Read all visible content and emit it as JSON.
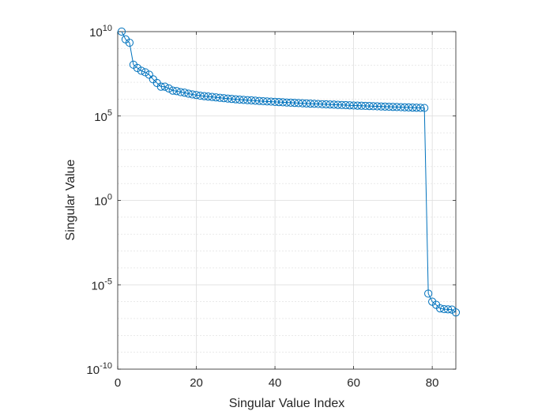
{
  "chart_data": {
    "type": "line",
    "xlabel": "Singular Value Index",
    "ylabel": "Singular Value",
    "xlim": [
      0,
      86
    ],
    "ylim_exponent": [
      -10,
      10
    ],
    "yscale": "log",
    "grid": true,
    "minor_grid": true,
    "x_ticks": [
      0,
      20,
      40,
      60,
      80
    ],
    "y_ticks": [
      {
        "base": "10",
        "exp": "-10",
        "value_exp": -10
      },
      {
        "base": "10",
        "exp": "-5",
        "value_exp": -5
      },
      {
        "base": "10",
        "exp": "0",
        "value_exp": 0
      },
      {
        "base": "10",
        "exp": "5",
        "value_exp": 5
      },
      {
        "base": "10",
        "exp": "10",
        "value_exp": 10
      }
    ],
    "line_color": "#0072BD",
    "marker": "circle",
    "series": [
      {
        "x": [
          1,
          2,
          3,
          4,
          5,
          6,
          7,
          8,
          9,
          10,
          11,
          12,
          13,
          14,
          15,
          16,
          17,
          18,
          19,
          20,
          21,
          22,
          23,
          24,
          25,
          26,
          27,
          28,
          29,
          30,
          31,
          32,
          33,
          34,
          35,
          36,
          37,
          38,
          39,
          40,
          41,
          42,
          43,
          44,
          45,
          46,
          47,
          48,
          49,
          50,
          51,
          52,
          53,
          54,
          55,
          56,
          57,
          58,
          59,
          60,
          61,
          62,
          63,
          64,
          65,
          66,
          67,
          68,
          69,
          70,
          71,
          72,
          73,
          74,
          75,
          76,
          77,
          78,
          79,
          80,
          81,
          82,
          83,
          84,
          85,
          86
        ],
        "y": [
          10000000000.0,
          3500000000.0,
          2200000000.0,
          110000000.0,
          70000000.0,
          48000000.0,
          39000000.0,
          28000000.0,
          15000000.0,
          9000000.0,
          5500000.0,
          5500000.0,
          4300000.0,
          3200000.0,
          3000000.0,
          2600000.0,
          2400000.0,
          2100000.0,
          1900000.0,
          1750000.0,
          1600000.0,
          1500000.0,
          1420000.0,
          1350000.0,
          1270000.0,
          1200000.0,
          1140000.0,
          1080000.0,
          1030000.0,
          980000.0,
          940000.0,
          900000.0,
          870000.0,
          840000.0,
          810000.0,
          780000.0,
          750000.0,
          730000.0,
          710000.0,
          690000.0,
          670000.0,
          650000.0,
          630000.0,
          615000.0,
          600000.0,
          585000.0,
          570000.0,
          555000.0,
          540000.0,
          528000.0,
          515000.0,
          502000.0,
          490000.0,
          480000.0,
          470000.0,
          460000.0,
          450000.0,
          440000.0,
          430000.0,
          420000.0,
          412000.0,
          405000.0,
          398000.0,
          390000.0,
          382000.0,
          375000.0,
          368000.0,
          360000.0,
          353000.0,
          346000.0,
          340000.0,
          334000.0,
          328000.0,
          322000.0,
          316000.0,
          310000.0,
          305000.0,
          300000.0,
          3e-06,
          1e-06,
          6.5e-07,
          4e-07,
          3.6e-07,
          3.5e-07,
          3.4e-07,
          2.3e-07
        ]
      }
    ]
  }
}
